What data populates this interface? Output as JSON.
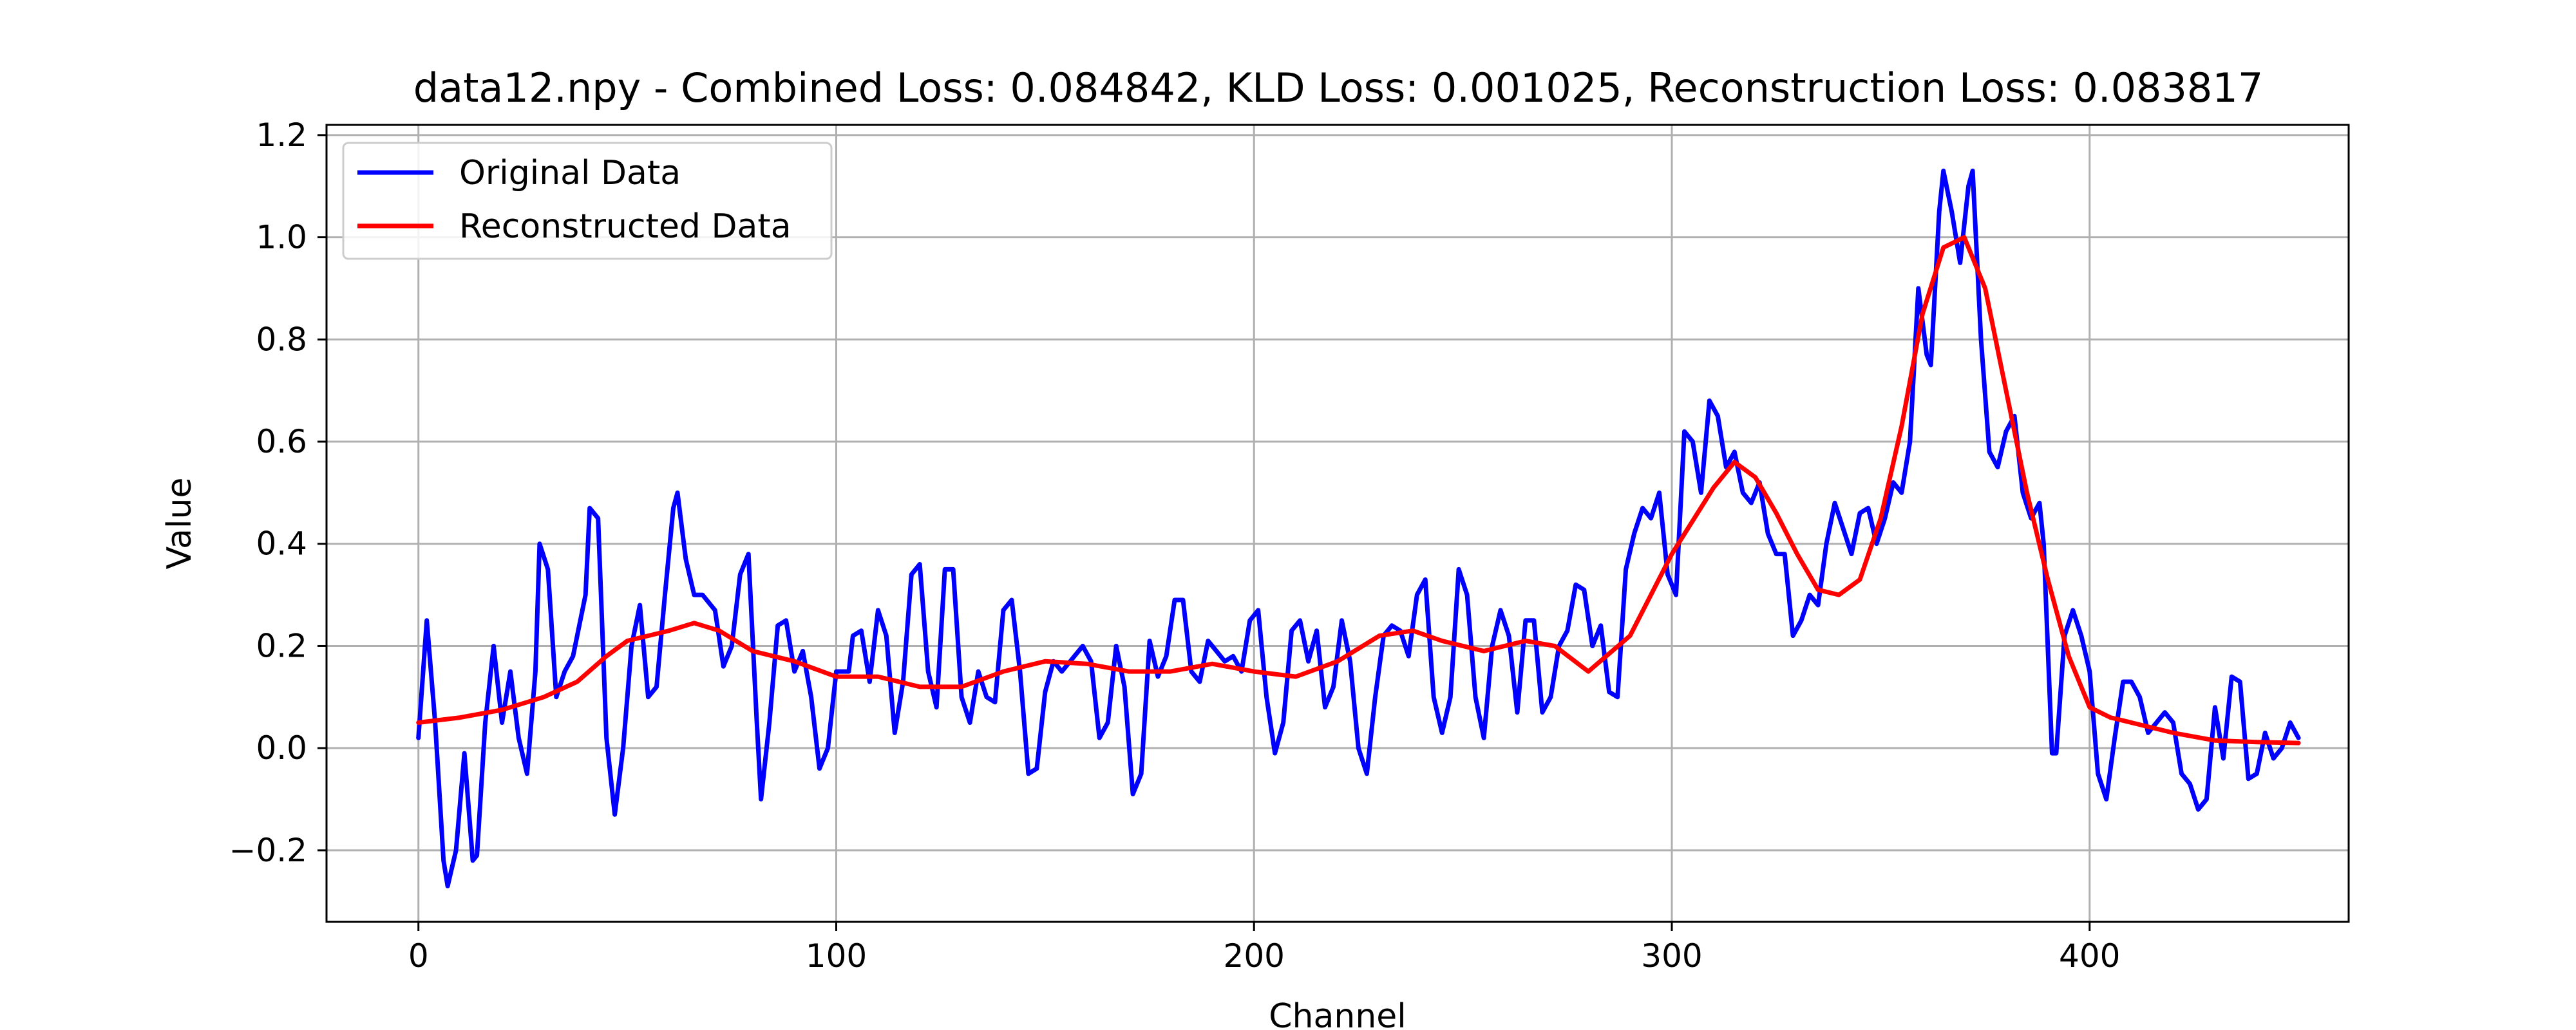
{
  "chart_data": {
    "type": "line",
    "title": "data12.npy - Combined Loss: 0.084842, KLD Loss: 0.001025, Reconstruction Loss: 0.083817",
    "xlabel": "Channel",
    "ylabel": "Value",
    "xlim": [
      -22,
      462
    ],
    "ylim": [
      -0.34,
      1.22
    ],
    "xticks": [
      0,
      100,
      200,
      300,
      400
    ],
    "xtick_labels": [
      "0",
      "100",
      "200",
      "300",
      "400"
    ],
    "yticks": [
      -0.2,
      0.0,
      0.2,
      0.4,
      0.6,
      0.8,
      1.0,
      1.2
    ],
    "ytick_labels": [
      "−0.2",
      "0.0",
      "0.2",
      "0.4",
      "0.6",
      "0.8",
      "1.0",
      "1.2"
    ],
    "grid": true,
    "legend_position": "top-left",
    "series": [
      {
        "name": "Original Data",
        "color": "#0000ff",
        "points": [
          [
            0,
            0.02
          ],
          [
            2,
            0.25
          ],
          [
            4,
            0.05
          ],
          [
            6,
            -0.22
          ],
          [
            7,
            -0.27
          ],
          [
            9,
            -0.2
          ],
          [
            11,
            -0.01
          ],
          [
            13,
            -0.22
          ],
          [
            14,
            -0.21
          ],
          [
            16,
            0.05
          ],
          [
            18,
            0.2
          ],
          [
            20,
            0.05
          ],
          [
            22,
            0.15
          ],
          [
            24,
            0.02
          ],
          [
            26,
            -0.05
          ],
          [
            28,
            0.15
          ],
          [
            29,
            0.4
          ],
          [
            31,
            0.35
          ],
          [
            33,
            0.1
          ],
          [
            35,
            0.15
          ],
          [
            37,
            0.18
          ],
          [
            40,
            0.3
          ],
          [
            41,
            0.47
          ],
          [
            43,
            0.45
          ],
          [
            45,
            0.02
          ],
          [
            47,
            -0.13
          ],
          [
            49,
            0.0
          ],
          [
            51,
            0.2
          ],
          [
            53,
            0.28
          ],
          [
            55,
            0.1
          ],
          [
            57,
            0.12
          ],
          [
            59,
            0.3
          ],
          [
            61,
            0.47
          ],
          [
            62,
            0.5
          ],
          [
            64,
            0.37
          ],
          [
            66,
            0.3
          ],
          [
            68,
            0.3
          ],
          [
            71,
            0.27
          ],
          [
            73,
            0.16
          ],
          [
            75,
            0.2
          ],
          [
            77,
            0.34
          ],
          [
            79,
            0.38
          ],
          [
            81,
            0.05
          ],
          [
            82,
            -0.1
          ],
          [
            84,
            0.05
          ],
          [
            86,
            0.24
          ],
          [
            88,
            0.25
          ],
          [
            90,
            0.15
          ],
          [
            92,
            0.19
          ],
          [
            94,
            0.1
          ],
          [
            96,
            -0.04
          ],
          [
            98,
            0.0
          ],
          [
            100,
            0.15
          ],
          [
            103,
            0.15
          ],
          [
            104,
            0.22
          ],
          [
            106,
            0.23
          ],
          [
            108,
            0.13
          ],
          [
            110,
            0.27
          ],
          [
            112,
            0.22
          ],
          [
            114,
            0.03
          ],
          [
            116,
            0.13
          ],
          [
            118,
            0.34
          ],
          [
            120,
            0.36
          ],
          [
            122,
            0.15
          ],
          [
            124,
            0.08
          ],
          [
            126,
            0.35
          ],
          [
            128,
            0.35
          ],
          [
            130,
            0.1
          ],
          [
            132,
            0.05
          ],
          [
            134,
            0.15
          ],
          [
            136,
            0.1
          ],
          [
            138,
            0.09
          ],
          [
            140,
            0.27
          ],
          [
            142,
            0.29
          ],
          [
            144,
            0.15
          ],
          [
            146,
            -0.05
          ],
          [
            148,
            -0.04
          ],
          [
            150,
            0.11
          ],
          [
            152,
            0.17
          ],
          [
            154,
            0.15
          ],
          [
            156,
            0.17
          ],
          [
            159,
            0.2
          ],
          [
            161,
            0.17
          ],
          [
            163,
            0.02
          ],
          [
            165,
            0.05
          ],
          [
            167,
            0.2
          ],
          [
            169,
            0.12
          ],
          [
            171,
            -0.09
          ],
          [
            173,
            -0.05
          ],
          [
            175,
            0.21
          ],
          [
            177,
            0.14
          ],
          [
            179,
            0.18
          ],
          [
            181,
            0.29
          ],
          [
            183,
            0.29
          ],
          [
            185,
            0.15
          ],
          [
            187,
            0.13
          ],
          [
            189,
            0.21
          ],
          [
            191,
            0.19
          ],
          [
            193,
            0.17
          ],
          [
            195,
            0.18
          ],
          [
            197,
            0.15
          ],
          [
            199,
            0.25
          ],
          [
            201,
            0.27
          ],
          [
            203,
            0.1
          ],
          [
            205,
            -0.01
          ],
          [
            207,
            0.05
          ],
          [
            209,
            0.23
          ],
          [
            211,
            0.25
          ],
          [
            213,
            0.17
          ],
          [
            215,
            0.23
          ],
          [
            217,
            0.08
          ],
          [
            219,
            0.12
          ],
          [
            221,
            0.25
          ],
          [
            223,
            0.17
          ],
          [
            225,
            0.0
          ],
          [
            227,
            -0.05
          ],
          [
            229,
            0.1
          ],
          [
            231,
            0.22
          ],
          [
            233,
            0.24
          ],
          [
            235,
            0.23
          ],
          [
            237,
            0.18
          ],
          [
            239,
            0.3
          ],
          [
            241,
            0.33
          ],
          [
            243,
            0.1
          ],
          [
            245,
            0.03
          ],
          [
            247,
            0.1
          ],
          [
            249,
            0.35
          ],
          [
            251,
            0.3
          ],
          [
            253,
            0.1
          ],
          [
            255,
            0.02
          ],
          [
            257,
            0.2
          ],
          [
            259,
            0.27
          ],
          [
            261,
            0.22
          ],
          [
            263,
            0.07
          ],
          [
            265,
            0.25
          ],
          [
            267,
            0.25
          ],
          [
            269,
            0.07
          ],
          [
            271,
            0.1
          ],
          [
            273,
            0.2
          ],
          [
            275,
            0.23
          ],
          [
            277,
            0.32
          ],
          [
            279,
            0.31
          ],
          [
            281,
            0.2
          ],
          [
            283,
            0.24
          ],
          [
            285,
            0.11
          ],
          [
            287,
            0.1
          ],
          [
            289,
            0.35
          ],
          [
            291,
            0.42
          ],
          [
            293,
            0.47
          ],
          [
            295,
            0.45
          ],
          [
            297,
            0.5
          ],
          [
            299,
            0.34
          ],
          [
            301,
            0.3
          ],
          [
            303,
            0.62
          ],
          [
            305,
            0.6
          ],
          [
            307,
            0.5
          ],
          [
            309,
            0.68
          ],
          [
            311,
            0.65
          ],
          [
            313,
            0.55
          ],
          [
            315,
            0.58
          ],
          [
            317,
            0.5
          ],
          [
            319,
            0.48
          ],
          [
            321,
            0.52
          ],
          [
            323,
            0.42
          ],
          [
            325,
            0.38
          ],
          [
            327,
            0.38
          ],
          [
            329,
            0.22
          ],
          [
            331,
            0.25
          ],
          [
            333,
            0.3
          ],
          [
            335,
            0.28
          ],
          [
            337,
            0.4
          ],
          [
            339,
            0.48
          ],
          [
            341,
            0.43
          ],
          [
            343,
            0.38
          ],
          [
            345,
            0.46
          ],
          [
            347,
            0.47
          ],
          [
            349,
            0.4
          ],
          [
            351,
            0.45
          ],
          [
            353,
            0.52
          ],
          [
            355,
            0.5
          ],
          [
            357,
            0.6
          ],
          [
            359,
            0.9
          ],
          [
            361,
            0.77
          ],
          [
            362,
            0.75
          ],
          [
            364,
            1.05
          ],
          [
            365,
            1.13
          ],
          [
            367,
            1.05
          ],
          [
            369,
            0.95
          ],
          [
            371,
            1.1
          ],
          [
            372,
            1.13
          ],
          [
            374,
            0.8
          ],
          [
            376,
            0.58
          ],
          [
            378,
            0.55
          ],
          [
            380,
            0.62
          ],
          [
            382,
            0.65
          ],
          [
            384,
            0.5
          ],
          [
            386,
            0.45
          ],
          [
            388,
            0.48
          ],
          [
            389,
            0.4
          ],
          [
            391,
            -0.01
          ],
          [
            392,
            -0.01
          ],
          [
            394,
            0.22
          ],
          [
            396,
            0.27
          ],
          [
            398,
            0.22
          ],
          [
            400,
            0.15
          ],
          [
            402,
            -0.05
          ],
          [
            404,
            -0.1
          ],
          [
            406,
            0.02
          ],
          [
            408,
            0.13
          ],
          [
            410,
            0.13
          ],
          [
            412,
            0.1
          ],
          [
            414,
            0.03
          ],
          [
            416,
            0.05
          ],
          [
            418,
            0.07
          ],
          [
            420,
            0.05
          ],
          [
            422,
            -0.05
          ],
          [
            424,
            -0.07
          ],
          [
            426,
            -0.12
          ],
          [
            428,
            -0.1
          ],
          [
            430,
            0.08
          ],
          [
            432,
            -0.02
          ],
          [
            434,
            0.14
          ],
          [
            436,
            0.13
          ],
          [
            438,
            -0.06
          ],
          [
            440,
            -0.05
          ],
          [
            442,
            0.03
          ],
          [
            444,
            -0.02
          ],
          [
            446,
            0.0
          ],
          [
            448,
            0.05
          ],
          [
            450,
            0.02
          ]
        ]
      },
      {
        "name": "Reconstructed Data",
        "color": "#ff0000",
        "points": [
          [
            0,
            0.05
          ],
          [
            10,
            0.06
          ],
          [
            20,
            0.075
          ],
          [
            30,
            0.1
          ],
          [
            38,
            0.13
          ],
          [
            45,
            0.18
          ],
          [
            50,
            0.21
          ],
          [
            60,
            0.23
          ],
          [
            66,
            0.245
          ],
          [
            72,
            0.23
          ],
          [
            80,
            0.19
          ],
          [
            90,
            0.17
          ],
          [
            100,
            0.14
          ],
          [
            110,
            0.14
          ],
          [
            120,
            0.12
          ],
          [
            130,
            0.12
          ],
          [
            140,
            0.15
          ],
          [
            150,
            0.17
          ],
          [
            160,
            0.165
          ],
          [
            170,
            0.15
          ],
          [
            180,
            0.15
          ],
          [
            190,
            0.165
          ],
          [
            200,
            0.15
          ],
          [
            210,
            0.14
          ],
          [
            220,
            0.17
          ],
          [
            230,
            0.22
          ],
          [
            238,
            0.23
          ],
          [
            245,
            0.21
          ],
          [
            255,
            0.19
          ],
          [
            265,
            0.21
          ],
          [
            272,
            0.2
          ],
          [
            280,
            0.15
          ],
          [
            290,
            0.22
          ],
          [
            300,
            0.38
          ],
          [
            310,
            0.51
          ],
          [
            315,
            0.56
          ],
          [
            320,
            0.53
          ],
          [
            325,
            0.46
          ],
          [
            330,
            0.38
          ],
          [
            335,
            0.31
          ],
          [
            340,
            0.3
          ],
          [
            345,
            0.33
          ],
          [
            350,
            0.45
          ],
          [
            355,
            0.63
          ],
          [
            360,
            0.85
          ],
          [
            365,
            0.98
          ],
          [
            370,
            1.0
          ],
          [
            375,
            0.9
          ],
          [
            380,
            0.7
          ],
          [
            385,
            0.5
          ],
          [
            390,
            0.33
          ],
          [
            395,
            0.18
          ],
          [
            400,
            0.08
          ],
          [
            405,
            0.06
          ],
          [
            410,
            0.05
          ],
          [
            420,
            0.03
          ],
          [
            430,
            0.015
          ],
          [
            440,
            0.012
          ],
          [
            450,
            0.01
          ]
        ]
      }
    ]
  }
}
